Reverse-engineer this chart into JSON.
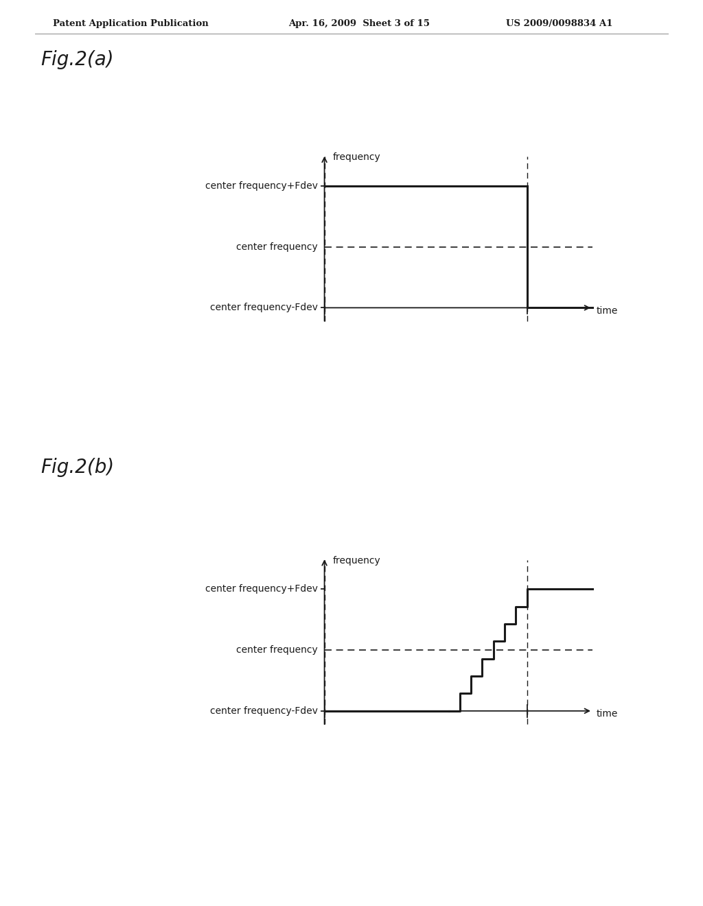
{
  "bg_color": "#ffffff",
  "header_text": "Patent Application Publication",
  "header_date": "Apr. 16, 2009  Sheet 3 of 15",
  "header_patent": "US 2009/0098834 A1",
  "fig_a_label": "Fig.2(a)",
  "fig_b_label": "Fig.2(b)",
  "label_cf_plus": "center frequency+Fdev",
  "label_cf": "center frequency",
  "label_cf_minus": "center frequency-Fdev",
  "label_freq": "frequency",
  "label_time": "time",
  "line_color": "#1a1a1a",
  "dashed_color": "#555555",
  "text_color": "#1a1a1a",
  "header_font_size": 9.5,
  "fig_label_font_size": 20,
  "axis_label_font_size": 10,
  "label_font_size": 10
}
